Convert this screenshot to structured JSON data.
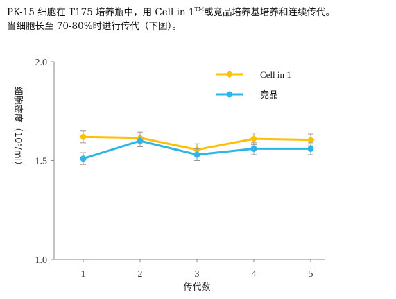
{
  "caption": {
    "line1_pre": "PK-15 细胞在 T175 培养瓶中，用 Cell in 1",
    "line1_sup": "TM",
    "line1_post": "或竞品培养基培养和连续传代。",
    "line2": "当细胞长至 70-80%时进行传代（下图）。"
  },
  "chart_data": {
    "type": "line",
    "title": "",
    "xlabel": "传代数",
    "ylabel": "细胞密度（10⁶/ml）",
    "x": [
      1,
      2,
      3,
      4,
      5
    ],
    "ylim": [
      1.0,
      2.0
    ],
    "yticks": [
      "1.0",
      "1.5",
      "2.0"
    ],
    "xticks": [
      "1",
      "2",
      "3",
      "4",
      "5"
    ],
    "legend_position": "top-right",
    "grid": false,
    "series": [
      {
        "name": "Cell in 1",
        "values": [
          1.62,
          1.615,
          1.555,
          1.61,
          1.605
        ],
        "errors": [
          0.03,
          0.03,
          0.03,
          0.03,
          0.03
        ],
        "color": "#FFC000",
        "marker": "diamond"
      },
      {
        "name": "竞品",
        "values": [
          1.51,
          1.6,
          1.53,
          1.56,
          1.56
        ],
        "errors": [
          0.03,
          0.03,
          0.03,
          0.03,
          0.03
        ],
        "color": "#2EB4E6",
        "marker": "circle"
      }
    ]
  }
}
